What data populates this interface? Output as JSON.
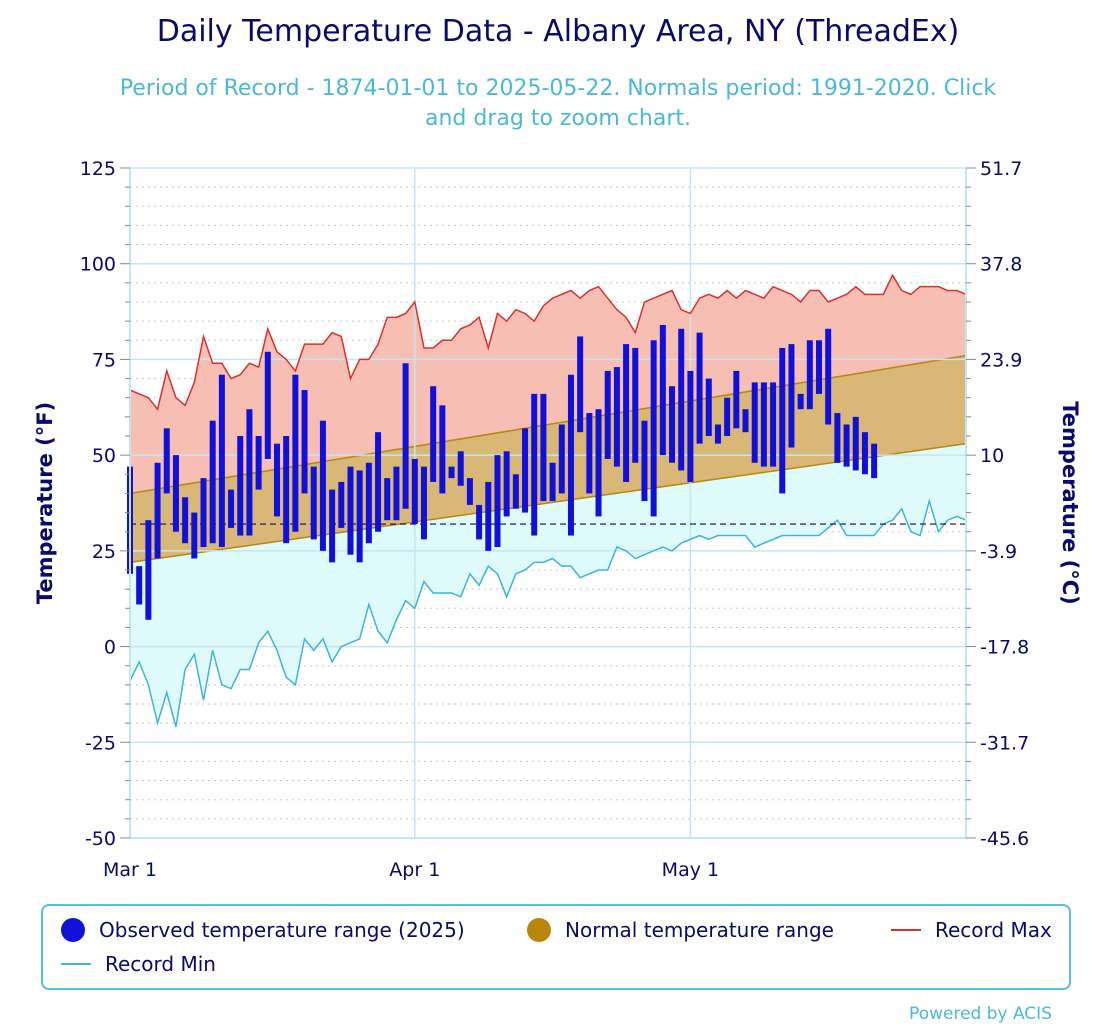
{
  "title": "Daily Temperature Data - Albany Area, NY (ThreadEx)",
  "subtitle_line1": "Period of Record - 1874-01-01 to 2025-05-22. Normals period: 1991-2020. Click",
  "subtitle_line2": "and drag to zoom chart.",
  "credits": "Powered by ACIS",
  "colors": {
    "observed": "#1010d8",
    "normal_fill": "#d9b877",
    "normal_line": "#b8860b",
    "record_max_fill": "#f7bab0",
    "record_max_line": "#d93030",
    "record_min_fill": "#dcfafa",
    "record_min_line": "#3fb5d0",
    "freezing_line": "#0a0a6b",
    "axis_text": "#0a0a6b",
    "grid": "#c5e6f0"
  },
  "legend": {
    "observed": "Observed temperature range (2025)",
    "normal": "Normal temperature range",
    "record_max": "Record Max",
    "record_min": "Record Min"
  },
  "chart_data": {
    "type": "bar",
    "title": "Daily Temperature Data - Albany Area, NY (ThreadEx)",
    "ylabel": "Temperature (°F)",
    "ylabel_right": "Temperature (°C)",
    "ylim": [
      -50,
      125
    ],
    "yticks": [
      125,
      100,
      75,
      50,
      25,
      0,
      -25,
      -50
    ],
    "yticks_right": [
      "51.7",
      "37.8",
      "23.9",
      "10",
      "-3.9",
      "-17.8",
      "-31.7",
      "-45.6"
    ],
    "x_range_days": [
      0,
      91
    ],
    "x_ticks": [
      {
        "label": "Mar 1",
        "day": 0
      },
      {
        "label": "Apr 1",
        "day": 31
      },
      {
        "label": "May 1",
        "day": 61
      }
    ],
    "freezing_line": 32,
    "normal_low": {
      "start": 22,
      "end": 53
    },
    "normal_high": {
      "start": 40,
      "end": 76
    },
    "record_max": [
      67,
      66,
      65,
      62,
      72,
      65,
      63,
      69,
      81,
      74,
      74,
      70,
      71,
      74,
      73,
      83,
      77,
      75,
      72,
      79,
      79,
      79,
      82,
      81,
      70,
      75,
      75,
      79,
      86,
      86,
      87,
      90,
      78,
      78,
      80,
      80,
      83,
      84,
      86,
      78,
      87,
      85,
      88,
      87,
      85,
      89,
      91,
      92,
      93,
      91,
      93,
      94,
      91,
      88,
      86,
      82,
      90,
      91,
      92,
      93,
      88,
      87,
      91,
      92,
      91,
      93,
      91,
      93,
      92,
      91,
      94,
      93,
      92,
      90,
      93,
      93,
      90,
      91,
      92,
      94,
      92,
      92,
      92,
      97,
      93,
      92,
      94,
      94,
      94,
      93,
      93,
      92
    ],
    "record_min": [
      -9,
      -4,
      -10,
      -20,
      -12,
      -21,
      -6,
      -2,
      -14,
      -1,
      -10,
      -11,
      -6,
      -6,
      1,
      4,
      -1,
      -8,
      -10,
      2,
      -1,
      2,
      -4,
      0,
      1,
      2,
      11,
      4,
      1,
      7,
      12,
      10,
      17,
      14,
      14,
      14,
      13,
      19,
      16,
      21,
      19,
      13,
      19,
      20,
      22,
      22,
      23,
      21,
      21,
      18,
      19,
      20,
      20,
      26,
      25,
      23,
      24,
      25,
      26,
      25,
      27,
      28,
      29,
      28,
      29,
      29,
      29,
      29,
      26,
      27,
      28,
      29,
      29,
      29,
      29,
      29,
      31,
      33,
      29,
      29,
      29,
      29,
      32,
      33,
      36,
      30,
      29,
      38,
      30,
      33,
      34,
      33,
      35
    ],
    "observed": [
      {
        "day": 0,
        "low": 19,
        "high": 47
      },
      {
        "day": 1,
        "low": 11,
        "high": 21
      },
      {
        "day": 2,
        "low": 7,
        "high": 33
      },
      {
        "day": 3,
        "low": 23,
        "high": 48
      },
      {
        "day": 4,
        "low": 40,
        "high": 57
      },
      {
        "day": 5,
        "low": 30,
        "high": 50
      },
      {
        "day": 6,
        "low": 27,
        "high": 39
      },
      {
        "day": 7,
        "low": 23,
        "high": 35
      },
      {
        "day": 8,
        "low": 26,
        "high": 44
      },
      {
        "day": 9,
        "low": 27,
        "high": 59
      },
      {
        "day": 10,
        "low": 26,
        "high": 71
      },
      {
        "day": 11,
        "low": 31,
        "high": 41
      },
      {
        "day": 12,
        "low": 29,
        "high": 55
      },
      {
        "day": 13,
        "low": 29,
        "high": 62
      },
      {
        "day": 14,
        "low": 41,
        "high": 55
      },
      {
        "day": 15,
        "low": 49,
        "high": 77
      },
      {
        "day": 16,
        "low": 34,
        "high": 53
      },
      {
        "day": 17,
        "low": 27,
        "high": 55
      },
      {
        "day": 18,
        "low": 30,
        "high": 71
      },
      {
        "day": 19,
        "low": 40,
        "high": 67
      },
      {
        "day": 20,
        "low": 28,
        "high": 47
      },
      {
        "day": 21,
        "low": 25,
        "high": 59
      },
      {
        "day": 22,
        "low": 22,
        "high": 41
      },
      {
        "day": 23,
        "low": 31,
        "high": 43
      },
      {
        "day": 24,
        "low": 24,
        "high": 47
      },
      {
        "day": 25,
        "low": 22,
        "high": 46
      },
      {
        "day": 26,
        "low": 27,
        "high": 48
      },
      {
        "day": 27,
        "low": 30,
        "high": 56
      },
      {
        "day": 28,
        "low": 33,
        "high": 44
      },
      {
        "day": 29,
        "low": 33,
        "high": 47
      },
      {
        "day": 30,
        "low": 36,
        "high": 74
      },
      {
        "day": 31,
        "low": 32,
        "high": 49
      },
      {
        "day": 32,
        "low": 28,
        "high": 47
      },
      {
        "day": 33,
        "low": 43,
        "high": 68
      },
      {
        "day": 34,
        "low": 40,
        "high": 63
      },
      {
        "day": 35,
        "low": 44,
        "high": 47
      },
      {
        "day": 36,
        "low": 42,
        "high": 51
      },
      {
        "day": 37,
        "low": 37,
        "high": 44
      },
      {
        "day": 38,
        "low": 28,
        "high": 37
      },
      {
        "day": 39,
        "low": 25,
        "high": 43
      },
      {
        "day": 40,
        "low": 26,
        "high": 50
      },
      {
        "day": 41,
        "low": 34,
        "high": 51
      },
      {
        "day": 42,
        "low": 36,
        "high": 45
      },
      {
        "day": 43,
        "low": 35,
        "high": 57
      },
      {
        "day": 44,
        "low": 29,
        "high": 66
      },
      {
        "day": 45,
        "low": 38,
        "high": 66
      },
      {
        "day": 46,
        "low": 38,
        "high": 48
      },
      {
        "day": 47,
        "low": 40,
        "high": 58
      },
      {
        "day": 48,
        "low": 29,
        "high": 71
      },
      {
        "day": 49,
        "low": 56,
        "high": 81
      },
      {
        "day": 50,
        "low": 40,
        "high": 61
      },
      {
        "day": 51,
        "low": 34,
        "high": 62
      },
      {
        "day": 52,
        "low": 49,
        "high": 72
      },
      {
        "day": 53,
        "low": 47,
        "high": 73
      },
      {
        "day": 54,
        "low": 43,
        "high": 79
      },
      {
        "day": 55,
        "low": 48,
        "high": 78
      },
      {
        "day": 56,
        "low": 38,
        "high": 59
      },
      {
        "day": 57,
        "low": 34,
        "high": 80
      },
      {
        "day": 58,
        "low": 50,
        "high": 84
      },
      {
        "day": 59,
        "low": 48,
        "high": 68
      },
      {
        "day": 60,
        "low": 46,
        "high": 83
      },
      {
        "day": 61,
        "low": 43,
        "high": 72
      },
      {
        "day": 62,
        "low": 53,
        "high": 82
      },
      {
        "day": 63,
        "low": 55,
        "high": 70
      },
      {
        "day": 64,
        "low": 53,
        "high": 58
      },
      {
        "day": 65,
        "low": 55,
        "high": 65
      },
      {
        "day": 66,
        "low": 57,
        "high": 72
      },
      {
        "day": 67,
        "low": 56,
        "high": 62
      },
      {
        "day": 68,
        "low": 48,
        "high": 69
      },
      {
        "day": 69,
        "low": 47,
        "high": 69
      },
      {
        "day": 70,
        "low": 47,
        "high": 69
      },
      {
        "day": 71,
        "low": 40,
        "high": 78
      },
      {
        "day": 72,
        "low": 52,
        "high": 79
      },
      {
        "day": 73,
        "low": 62,
        "high": 66
      },
      {
        "day": 74,
        "low": 62,
        "high": 80
      },
      {
        "day": 75,
        "low": 66,
        "high": 80
      },
      {
        "day": 76,
        "low": 58,
        "high": 83
      },
      {
        "day": 77,
        "low": 48,
        "high": 61
      },
      {
        "day": 78,
        "low": 47,
        "high": 58
      },
      {
        "day": 79,
        "low": 46,
        "high": 60
      },
      {
        "day": 80,
        "low": 45,
        "high": 56
      },
      {
        "day": 81,
        "low": 44,
        "high": 53
      }
    ]
  }
}
